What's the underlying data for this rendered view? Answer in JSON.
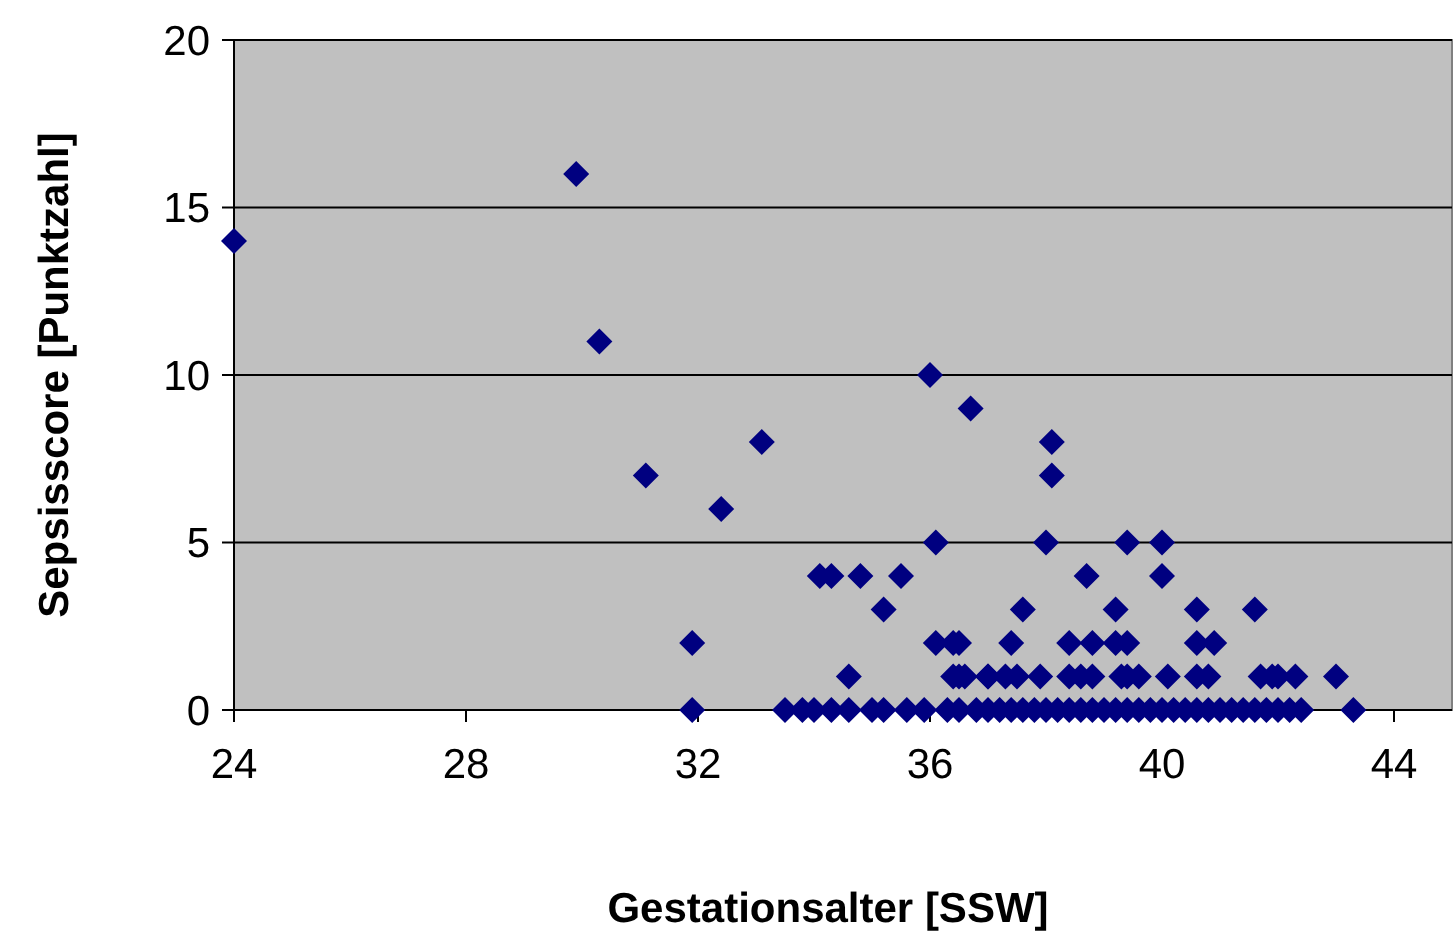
{
  "chart_data": {
    "type": "scatter",
    "xlabel": "Gestationsalter [SSW]",
    "ylabel": "Sepsisscore [Punktzahl]",
    "xlim": [
      24,
      45
    ],
    "xticks": [
      24,
      28,
      32,
      36,
      40,
      44
    ],
    "ylim": [
      0,
      20
    ],
    "yticks": [
      0,
      5,
      10,
      15,
      20
    ],
    "grid": "y",
    "marker": "diamond",
    "series": [
      {
        "color": "#000080",
        "x": [
          24,
          29.9,
          30.3,
          31.1,
          32.4,
          33.1,
          31.9,
          31.9,
          36,
          36.7,
          36.1,
          34.1,
          34.3,
          34.8,
          35.5,
          35.2,
          34.6,
          36.1,
          36.4,
          36.4,
          36.6,
          37,
          38.1,
          38.1,
          38,
          39.4,
          40,
          38.7,
          40,
          37.6,
          39.2,
          40.6,
          41.6,
          36.5,
          37.4,
          38.4,
          38.8,
          39.2,
          39.4,
          40.6,
          40.9,
          36.5,
          37,
          37.3,
          37.5,
          37.9,
          38.4,
          38.6,
          38.8,
          39.3,
          39.4,
          39.6,
          40.1,
          40.6,
          40.8,
          41.7,
          41.9,
          42,
          42.3,
          43,
          33.5,
          33.8,
          34,
          34.3,
          34.6,
          35,
          35.2,
          35.6,
          35.9,
          36.3,
          36.5,
          36.8,
          37,
          37.2,
          37.4,
          37.6,
          37.8,
          38,
          38.2,
          38.4,
          38.6,
          38.8,
          39,
          39.2,
          39.4,
          39.6,
          39.8,
          40,
          40.2,
          40.4,
          40.6,
          40.8,
          41,
          41.2,
          41.4,
          41.6,
          41.8,
          42,
          42.2,
          42.4,
          43.3
        ],
        "values": [
          14,
          16,
          11,
          7,
          6,
          8,
          2,
          0,
          10,
          9,
          5,
          4,
          4,
          4,
          4,
          3,
          1,
          2,
          2,
          1,
          1,
          1,
          8,
          7,
          5,
          5,
          5,
          4,
          4,
          3,
          3,
          3,
          3,
          2,
          2,
          2,
          2,
          2,
          2,
          2,
          2,
          1,
          1,
          1,
          1,
          1,
          1,
          1,
          1,
          1,
          1,
          1,
          1,
          1,
          1,
          1,
          1,
          1,
          1,
          1,
          0,
          0,
          0,
          0,
          0,
          0,
          0,
          0,
          0,
          0,
          0,
          0,
          0,
          0,
          0,
          0,
          0,
          0,
          0,
          0,
          0,
          0,
          0,
          0,
          0,
          0,
          0,
          0,
          0,
          0,
          0,
          0,
          0,
          0,
          0,
          0,
          0,
          0,
          0,
          0,
          0
        ]
      }
    ]
  }
}
